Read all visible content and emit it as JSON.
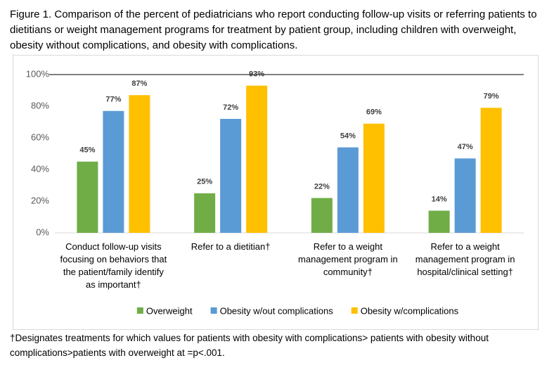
{
  "caption": "Figure 1. Comparison of the percent of pediatricians who report conducting follow-up visits or referring patients to dietitians or weight management programs for treatment by patient group, including children with overweight, obesity without complications, and obesity with complications.",
  "footnote": "†Designates treatments for which values for patients with obesity with complications> patients with obesity without complications>patients with overweight at =p<.001.",
  "chart_data": {
    "type": "bar",
    "categories": [
      "Conduct follow-up visits focusing on behaviors that the patient/family identify as important†",
      "Refer to a dietitian†",
      "Refer to a weight management program in community†",
      "Refer to a weight management program in hospital/clinical setting†"
    ],
    "series": [
      {
        "name": "Overweight",
        "color": "#70ad47",
        "values": [
          45,
          25,
          22,
          14
        ],
        "value_labels": [
          "45%",
          "25%",
          "22%",
          "14%"
        ]
      },
      {
        "name": "Obesity w/out complications",
        "color": "#5b9bd5",
        "values": [
          77,
          72,
          54,
          47
        ],
        "value_labels": [
          "77%",
          "72%",
          "54%",
          "47%"
        ]
      },
      {
        "name": "Obesity w/complications",
        "color": "#ffc000",
        "values": [
          87,
          93,
          69,
          79
        ],
        "value_labels": [
          "87%",
          "93%",
          "69%",
          "79%"
        ]
      }
    ],
    "ylim": [
      0,
      100
    ],
    "yticks": [
      {
        "value": 0,
        "label": "0%"
      },
      {
        "value": 20,
        "label": "20%"
      },
      {
        "value": 40,
        "label": "40%"
      },
      {
        "value": 60,
        "label": "60%"
      },
      {
        "value": 80,
        "label": "80%"
      },
      {
        "value": 100,
        "label": "100%"
      }
    ],
    "grid": false,
    "legend": "bottom"
  }
}
